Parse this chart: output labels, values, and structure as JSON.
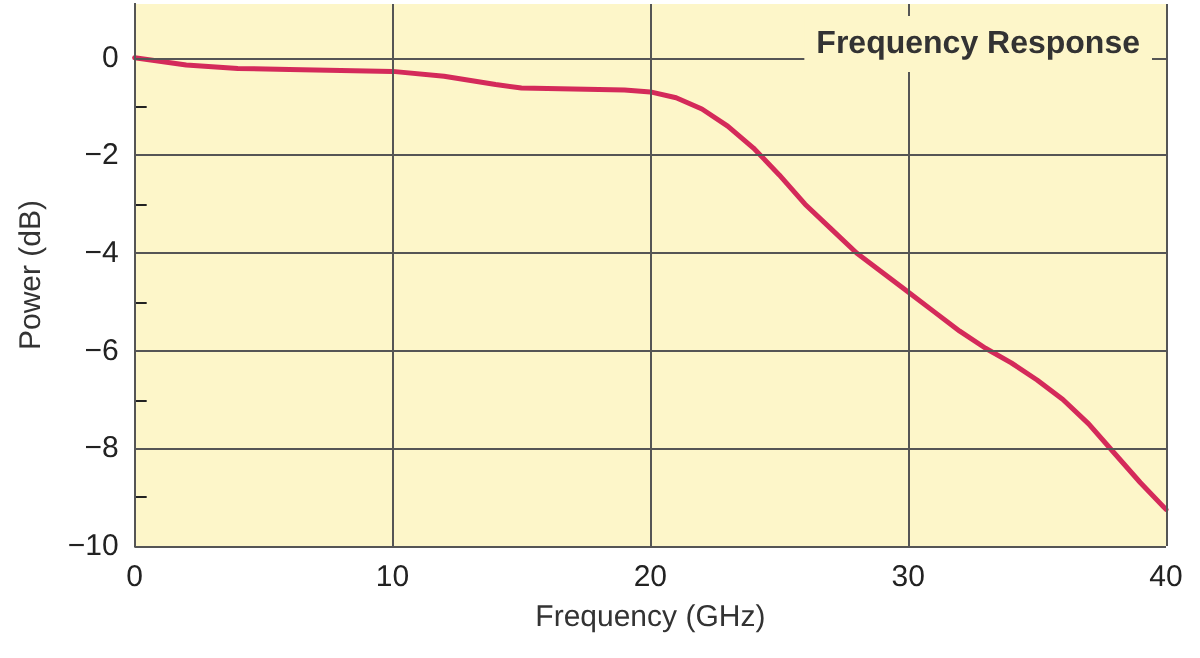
{
  "chart_data": {
    "type": "line",
    "title": "Frequency Response",
    "xlabel": "Frequency (GHz)",
    "ylabel": "Power (dB)",
    "x": [
      0,
      2,
      4,
      6,
      8,
      10,
      12,
      14,
      15,
      17,
      19,
      20,
      21,
      22,
      23,
      24,
      25,
      26,
      27,
      28,
      29,
      30,
      31,
      32,
      33,
      34,
      35,
      36,
      37,
      38,
      39,
      40
    ],
    "series": [
      {
        "color": "#d42a5a",
        "values": [
          0,
          -0.15,
          -0.22,
          -0.24,
          -0.26,
          -0.28,
          -0.38,
          -0.55,
          -0.62,
          -0.64,
          -0.66,
          -0.7,
          -0.82,
          -1.05,
          -1.4,
          -1.85,
          -2.4,
          -3,
          -3.5,
          -4,
          -4.4,
          -4.8,
          -5.2,
          -5.6,
          -5.95,
          -6.25,
          -6.6,
          -7,
          -7.5,
          -8.1,
          -8.7,
          -9.25
        ]
      }
    ],
    "xlim": [
      0,
      40
    ],
    "xticks": [
      0,
      10,
      20,
      30,
      40
    ],
    "ylim": [
      -10,
      1.1
    ],
    "yticks": [
      -10,
      {
        "value": -9,
        "label": null
      },
      -8,
      {
        "value": -7,
        "label": null
      },
      -6,
      {
        "value": -5,
        "label": null
      },
      -4,
      {
        "value": -3,
        "label": null
      },
      -2,
      {
        "value": -1,
        "label": null
      },
      0
    ],
    "grid": true,
    "line_style": "solid",
    "marker": "none"
  }
}
